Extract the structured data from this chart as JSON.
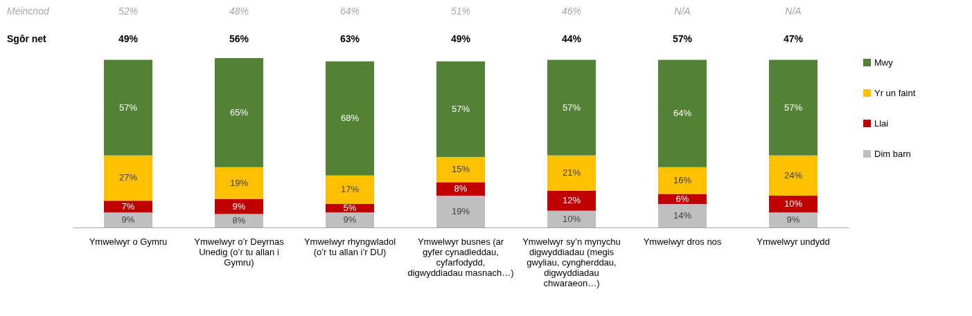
{
  "chart_data": {
    "type": "bar",
    "stacked": true,
    "legend": "right",
    "grid": false,
    "categories": [
      "Ymwelwyr o Gymru",
      "Ymwelwyr o’r Deyrnas Unedig (o’r tu allan i Gymru)",
      "Ymwelwyr rhyngwladol (o’r tu allan i’r DU)",
      "Ymwelwyr busnes (ar gyfer cynadleddau, cyfarfodydd, digwyddiadau masnach…)",
      "Ymwelwyr sy’n mynychu digwyddiadau (megis gwyliau, cyngherddau, digwyddiadau chwaraeon…)",
      "Ymwelwyr dros nos",
      "Ymwelwyr undydd"
    ],
    "series": [
      {
        "name": "Dim barn",
        "color": "#bfbfbf",
        "values": [
          9,
          8,
          9,
          19,
          10,
          14,
          9
        ],
        "value_labels": [
          "9%",
          "8%",
          "9%",
          "19%",
          "10%",
          "14%",
          "9%"
        ]
      },
      {
        "name": "Llai",
        "color": "#c00000",
        "values": [
          7,
          9,
          5,
          8,
          12,
          6,
          10
        ],
        "value_labels": [
          "7%",
          "9%",
          "5%",
          "8%",
          "12%",
          "6%",
          "10%"
        ]
      },
      {
        "name": "Yr un faint",
        "color": "#ffc000",
        "values": [
          27,
          19,
          17,
          15,
          21,
          16,
          24
        ],
        "value_labels": [
          "27%",
          "19%",
          "17%",
          "15%",
          "21%",
          "16%",
          "24%"
        ]
      },
      {
        "name": "Mwy",
        "color": "#538135",
        "values": [
          57,
          65,
          68,
          57,
          57,
          64,
          57
        ],
        "value_labels": [
          "57%",
          "65%",
          "68%",
          "57%",
          "57%",
          "64%",
          "57%"
        ]
      }
    ],
    "annotations": [
      "Meincnod",
      "52%",
      "48%",
      "64%",
      "51%",
      "46%",
      "N/A",
      "N/A",
      "Sgôr net",
      "49%",
      "56%",
      "63%",
      "49%",
      "44%",
      "57%",
      "47%"
    ]
  }
}
